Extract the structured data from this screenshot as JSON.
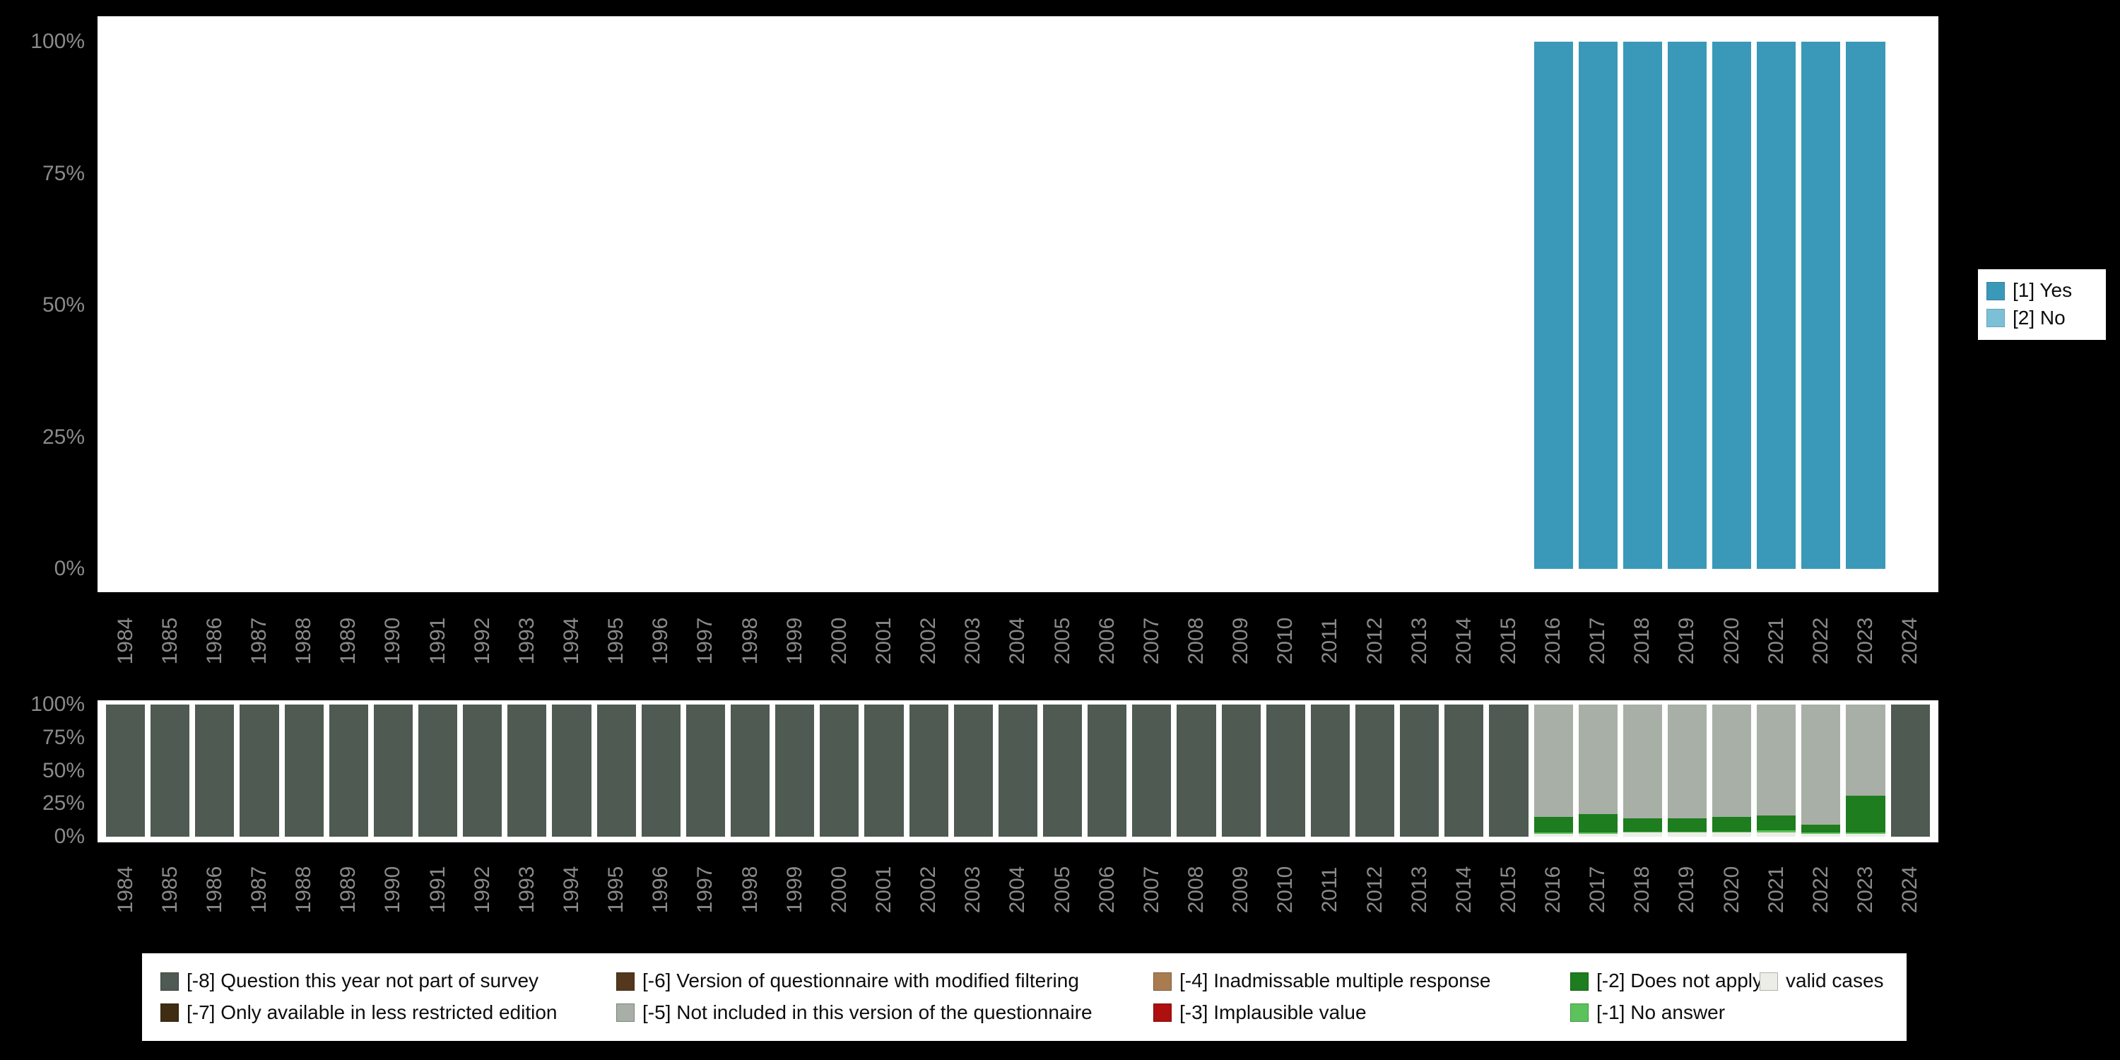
{
  "colors": {
    "background": "#000000",
    "panel": "#FFFFFF",
    "axis_text": "#8a8a8a",
    "yes": "#3A99B8",
    "no": "#7CC0D8",
    "not_part_of_survey": "#4E5A52",
    "less_restricted_edition": "#402C12",
    "modified_filtering": "#53381D",
    "not_included_version": "#A8AFA6",
    "inadmissable_multiple_response": "#A97C50",
    "implausible_value": "#AE0F0F",
    "does_not_apply": "#1E7D1E",
    "no_answer": "#5CC35C",
    "valid_cases": "#EDEDE7"
  },
  "legend_top": {
    "items": [
      {
        "label": "[1] Yes",
        "color": "#3A99B8"
      },
      {
        "label": "[2] No",
        "color": "#7CC0D8"
      }
    ]
  },
  "legend_bottom": {
    "items": [
      {
        "label": "[-8] Question this year not part of survey",
        "color": "#4E5A52"
      },
      {
        "label": "[-6] Version of questionnaire with modified filtering",
        "color": "#53381D"
      },
      {
        "label": "[-4] Inadmissable multiple response",
        "color": "#A97C50"
      },
      {
        "label": "[-2] Does not apply",
        "color": "#1E7D1E"
      },
      {
        "label": "valid cases",
        "color": "#EDEDE7"
      },
      {
        "label": "[-7] Only available in less restricted edition",
        "color": "#402C12"
      },
      {
        "label": "[-5] Not included in this version of the questionnaire",
        "color": "#A8AFA6"
      },
      {
        "label": "[-3] Implausible value",
        "color": "#AE0F0F"
      },
      {
        "label": "[-1] No answer",
        "color": "#5CC35C"
      }
    ]
  },
  "chart_data": [
    {
      "type": "bar",
      "stacked": true,
      "title": "",
      "xlabel": "",
      "ylabel": "",
      "ylim": [
        0,
        100
      ],
      "yticks": [
        "100%",
        "75%",
        "50%",
        "25%",
        "0%"
      ],
      "x_tick_rotation": 90,
      "legend_position": "right",
      "categories": [
        "1984",
        "1985",
        "1986",
        "1987",
        "1988",
        "1989",
        "1990",
        "1991",
        "1992",
        "1993",
        "1994",
        "1995",
        "1996",
        "1997",
        "1998",
        "1999",
        "2000",
        "2001",
        "2002",
        "2003",
        "2004",
        "2005",
        "2006",
        "2007",
        "2008",
        "2009",
        "2010",
        "2011",
        "2012",
        "2013",
        "2014",
        "2015",
        "2016",
        "2017",
        "2018",
        "2019",
        "2020",
        "2021",
        "2022",
        "2023",
        "2024"
      ],
      "series": [
        {
          "name": "[1] Yes",
          "color": "#3A99B8",
          "values": [
            0,
            0,
            0,
            0,
            0,
            0,
            0,
            0,
            0,
            0,
            0,
            0,
            0,
            0,
            0,
            0,
            0,
            0,
            0,
            0,
            0,
            0,
            0,
            0,
            0,
            0,
            0,
            0,
            0,
            0,
            0,
            0,
            100,
            100,
            100,
            100,
            100,
            100,
            100,
            100,
            0
          ]
        },
        {
          "name": "[2] No",
          "color": "#7CC0D8",
          "values": [
            0,
            0,
            0,
            0,
            0,
            0,
            0,
            0,
            0,
            0,
            0,
            0,
            0,
            0,
            0,
            0,
            0,
            0,
            0,
            0,
            0,
            0,
            0,
            0,
            0,
            0,
            0,
            0,
            0,
            0,
            0,
            0,
            0,
            0,
            0,
            0,
            0,
            0,
            0,
            0,
            0
          ]
        }
      ]
    },
    {
      "type": "bar",
      "stacked": true,
      "title": "",
      "xlabel": "",
      "ylabel": "",
      "ylim": [
        0,
        100
      ],
      "yticks": [
        "100%",
        "75%",
        "50%",
        "25%",
        "0%"
      ],
      "x_tick_rotation": 90,
      "legend_position": "bottom",
      "categories": [
        "1984",
        "1985",
        "1986",
        "1987",
        "1988",
        "1989",
        "1990",
        "1991",
        "1992",
        "1993",
        "1994",
        "1995",
        "1996",
        "1997",
        "1998",
        "1999",
        "2000",
        "2001",
        "2002",
        "2003",
        "2004",
        "2005",
        "2006",
        "2007",
        "2008",
        "2009",
        "2010",
        "2011",
        "2012",
        "2013",
        "2014",
        "2015",
        "2016",
        "2017",
        "2018",
        "2019",
        "2020",
        "2021",
        "2022",
        "2023",
        "2024"
      ],
      "series": [
        {
          "name": "valid cases",
          "color": "#EDEDE7",
          "values": [
            0,
            0,
            0,
            0,
            0,
            0,
            0,
            0,
            0,
            0,
            0,
            0,
            0,
            0,
            0,
            0,
            0,
            0,
            0,
            0,
            0,
            0,
            0,
            0,
            0,
            0,
            0,
            0,
            0,
            0,
            0,
            0,
            2,
            2,
            3,
            3,
            3,
            3,
            2,
            2,
            0
          ]
        },
        {
          "name": "[-1] No answer",
          "color": "#5CC35C",
          "values": [
            0,
            0,
            0,
            0,
            0,
            0,
            0,
            0,
            0,
            0,
            0,
            0,
            0,
            0,
            0,
            0,
            0,
            0,
            0,
            0,
            0,
            0,
            0,
            0,
            0,
            0,
            0,
            0,
            0,
            0,
            0,
            0,
            1,
            1,
            1,
            1,
            1,
            2,
            1,
            1,
            0
          ]
        },
        {
          "name": "[-2] Does not apply",
          "color": "#1E7D1E",
          "values": [
            0,
            0,
            0,
            0,
            0,
            0,
            0,
            0,
            0,
            0,
            0,
            0,
            0,
            0,
            0,
            0,
            0,
            0,
            0,
            0,
            0,
            0,
            0,
            0,
            0,
            0,
            0,
            0,
            0,
            0,
            0,
            0,
            12,
            14,
            10,
            10,
            11,
            11,
            6,
            28,
            0
          ]
        },
        {
          "name": "[-3] Implausible value",
          "color": "#AE0F0F",
          "values": [
            0,
            0,
            0,
            0,
            0,
            0,
            0,
            0,
            0,
            0,
            0,
            0,
            0,
            0,
            0,
            0,
            0,
            0,
            0,
            0,
            0,
            0,
            0,
            0,
            0,
            0,
            0,
            0,
            0,
            0,
            0,
            0,
            0,
            0,
            0,
            0,
            0,
            0,
            0,
            0,
            0
          ]
        },
        {
          "name": "[-4] Inadmissable multiple response",
          "color": "#A97C50",
          "values": [
            0,
            0,
            0,
            0,
            0,
            0,
            0,
            0,
            0,
            0,
            0,
            0,
            0,
            0,
            0,
            0,
            0,
            0,
            0,
            0,
            0,
            0,
            0,
            0,
            0,
            0,
            0,
            0,
            0,
            0,
            0,
            0,
            0,
            0,
            0,
            0,
            0,
            0,
            0,
            0,
            0
          ]
        },
        {
          "name": "[-5] Not included in this version of the questionnaire",
          "color": "#A8AFA6",
          "values": [
            0,
            0,
            0,
            0,
            0,
            0,
            0,
            0,
            0,
            0,
            0,
            0,
            0,
            0,
            0,
            0,
            0,
            0,
            0,
            0,
            0,
            0,
            0,
            0,
            0,
            0,
            0,
            0,
            0,
            0,
            0,
            0,
            85,
            83,
            86,
            86,
            85,
            84,
            91,
            69,
            0
          ]
        },
        {
          "name": "[-6] Version of questionnaire with modified filtering",
          "color": "#53381D",
          "values": [
            0,
            0,
            0,
            0,
            0,
            0,
            0,
            0,
            0,
            0,
            0,
            0,
            0,
            0,
            0,
            0,
            0,
            0,
            0,
            0,
            0,
            0,
            0,
            0,
            0,
            0,
            0,
            0,
            0,
            0,
            0,
            0,
            0,
            0,
            0,
            0,
            0,
            0,
            0,
            0,
            0
          ]
        },
        {
          "name": "[-7] Only available in less restricted edition",
          "color": "#402C12",
          "values": [
            0,
            0,
            0,
            0,
            0,
            0,
            0,
            0,
            0,
            0,
            0,
            0,
            0,
            0,
            0,
            0,
            0,
            0,
            0,
            0,
            0,
            0,
            0,
            0,
            0,
            0,
            0,
            0,
            0,
            0,
            0,
            0,
            0,
            0,
            0,
            0,
            0,
            0,
            0,
            0,
            0
          ]
        },
        {
          "name": "[-8] Question this year not part of survey",
          "color": "#4E5A52",
          "values": [
            100,
            100,
            100,
            100,
            100,
            100,
            100,
            100,
            100,
            100,
            100,
            100,
            100,
            100,
            100,
            100,
            100,
            100,
            100,
            100,
            100,
            100,
            100,
            100,
            100,
            100,
            100,
            100,
            100,
            100,
            100,
            100,
            0,
            0,
            0,
            0,
            0,
            0,
            0,
            0,
            100
          ]
        }
      ]
    }
  ]
}
